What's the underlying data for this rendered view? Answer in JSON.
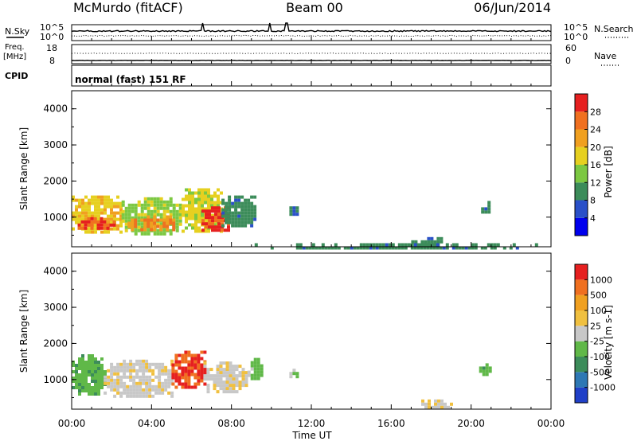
{
  "header": {
    "station": "McMurdo (fitACF)",
    "beam": "Beam 00",
    "date": "06/Jun/2014"
  },
  "strips": {
    "nsky_label": "N.Sky",
    "nsearch_label": "N.Search",
    "left_ticks": [
      "10^5",
      "10^0"
    ],
    "right_ticks": [
      "10^5",
      "10^0"
    ],
    "freq_label_line1": "Freq.",
    "freq_label_line2": "[MHz]",
    "freq_ticks": [
      "18",
      "8"
    ],
    "nave_label": "Nave",
    "nave_ticks": [
      "60",
      "0"
    ],
    "cpid_label": "CPID",
    "cpid_text": "normal (fast) 151 RF"
  },
  "panels": {
    "y_axis_label": "Slant Range [km]",
    "y_ticks": [
      "4000",
      "3000",
      "2000",
      "1000"
    ],
    "x_ticks": [
      "00:00",
      "04:00",
      "08:00",
      "12:00",
      "16:00",
      "20:00",
      "00:00"
    ],
    "x_axis_label": "Time UT"
  },
  "colorbars": {
    "power": {
      "label": "Power [dB]",
      "ticks": [
        "28",
        "24",
        "20",
        "16",
        "12",
        "8",
        "4"
      ],
      "colors": [
        "#0000ee",
        "#2a50c8",
        "#3c8c5a",
        "#7cc842",
        "#e6d020",
        "#f0a020",
        "#f07020",
        "#e62020"
      ]
    },
    "velocity": {
      "label": "Velocity [m s-1]",
      "ticks": [
        "1000",
        "500",
        "100",
        "25",
        "-25",
        "-100",
        "-500",
        "-1000"
      ],
      "colors": [
        "#2040c8",
        "#2e78b4",
        "#3c8c5a",
        "#60b848",
        "#c8c8c8",
        "#f0c040",
        "#f0a020",
        "#f07020",
        "#e62020"
      ]
    }
  },
  "chart_data": [
    {
      "type": "heatmap",
      "title": "Beam 00",
      "xlabel": "Time UT",
      "ylabel": "Slant Range [km]",
      "x_range_hours": [
        0,
        24
      ],
      "y_range_km": [
        180,
        4500
      ],
      "colorbar_label": "Power [dB]",
      "colorbar_range": [
        0,
        30
      ],
      "blobs": [
        {
          "t0": 0.0,
          "t1": 2.5,
          "r0": 600,
          "r1": 1600,
          "value": 18
        },
        {
          "t0": 0.3,
          "t1": 2.2,
          "r0": 650,
          "r1": 1000,
          "value": 26
        },
        {
          "t0": 2.5,
          "t1": 5.5,
          "r0": 550,
          "r1": 1550,
          "value": 14
        },
        {
          "t0": 2.8,
          "t1": 5.2,
          "r0": 650,
          "r1": 1050,
          "value": 22
        },
        {
          "t0": 5.5,
          "t1": 7.5,
          "r0": 650,
          "r1": 1800,
          "value": 16
        },
        {
          "t0": 6.5,
          "t1": 7.8,
          "r0": 650,
          "r1": 1300,
          "value": 27
        },
        {
          "t0": 7.5,
          "t1": 9.2,
          "r0": 800,
          "r1": 1600,
          "value": 9
        },
        {
          "t0": 10.9,
          "t1": 11.3,
          "r0": 1100,
          "r1": 1300,
          "value": 7
        },
        {
          "t0": 20.5,
          "t1": 20.9,
          "r0": 1100,
          "r1": 1450,
          "value": 8
        },
        {
          "t0": 17.0,
          "t1": 18.5,
          "r0": 250,
          "r1": 450,
          "value": 8
        },
        {
          "t0": 9.0,
          "t1": 23.5,
          "r0": 180,
          "r1": 280,
          "value": 9
        }
      ]
    },
    {
      "type": "heatmap",
      "xlabel": "Time UT",
      "ylabel": "Slant Range [km]",
      "x_range_hours": [
        0,
        24
      ],
      "y_range_km": [
        180,
        4500
      ],
      "colorbar_label": "Velocity [m s-1]",
      "colorbar_range": [
        -1000,
        1000
      ],
      "blobs": [
        {
          "t0": 0.0,
          "t1": 1.6,
          "r0": 600,
          "r1": 1700,
          "value": -250
        },
        {
          "t0": 1.6,
          "t1": 5.0,
          "r0": 550,
          "r1": 1550,
          "value": 60
        },
        {
          "t0": 5.0,
          "t1": 6.6,
          "r0": 800,
          "r1": 1800,
          "value": 800
        },
        {
          "t0": 6.6,
          "t1": 8.8,
          "r0": 700,
          "r1": 1500,
          "value": 60
        },
        {
          "t0": 8.8,
          "t1": 9.5,
          "r0": 1000,
          "r1": 1600,
          "value": -200
        },
        {
          "t0": 10.9,
          "t1": 11.3,
          "r0": 1100,
          "r1": 1300,
          "value": -150
        },
        {
          "t0": 20.4,
          "t1": 20.9,
          "r0": 1100,
          "r1": 1450,
          "value": -300
        },
        {
          "t0": 17.5,
          "t1": 19.0,
          "r0": 250,
          "r1": 450,
          "value": 60
        }
      ]
    }
  ]
}
